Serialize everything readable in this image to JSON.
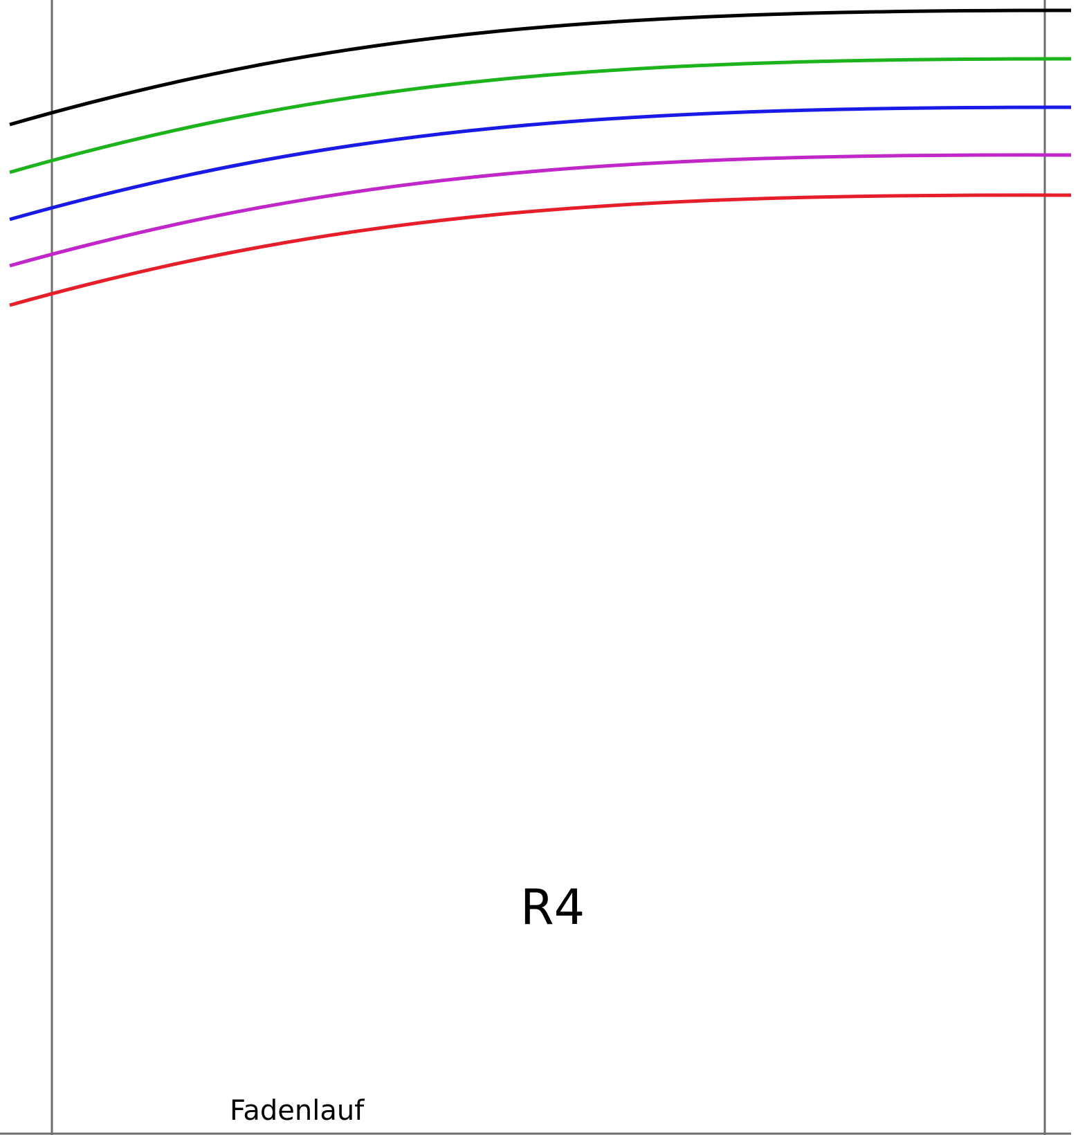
{
  "piece": {
    "label": "R4",
    "grain_label": "Fadenlauf"
  },
  "colors": {
    "background": "#ffffff",
    "guide_lines": "#6e6e6e",
    "size_lines": [
      "#000000",
      "#1db31d",
      "#1a1ae6",
      "#c026c8",
      "#e61e2a"
    ]
  },
  "size_line_count": 5
}
